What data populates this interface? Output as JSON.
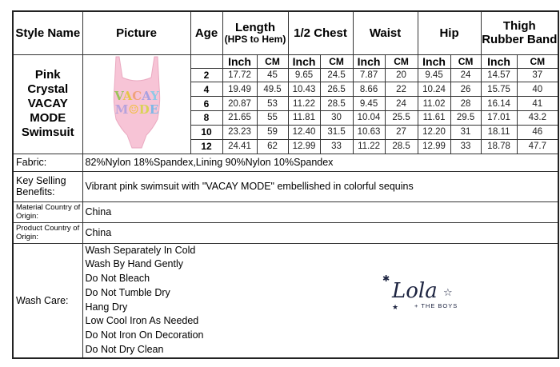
{
  "headers": {
    "style_name": "Style Name",
    "picture": "Picture",
    "age": "Age",
    "length": "Length",
    "length_sub": "(HPS to Hem)",
    "chest": "1/2 Chest",
    "waist": "Waist",
    "hip": "Hip",
    "thigh": "Thigh Rubber Band",
    "inch": "Inch",
    "cm": "CM"
  },
  "product": {
    "style_name": "Pink Crystal VACAY MODE Swimsuit",
    "picture_lettering": [
      "VACAY",
      "MODE"
    ],
    "swimsuit_color": "#f7c4d6"
  },
  "rows": [
    {
      "age": "2",
      "length_in": "17.72",
      "length_cm": "45",
      "chest_in": "9.65",
      "chest_cm": "24.5",
      "waist_in": "7.87",
      "waist_cm": "20",
      "hip_in": "9.45",
      "hip_cm": "24",
      "thigh_in": "14.57",
      "thigh_cm": "37"
    },
    {
      "age": "4",
      "length_in": "19.49",
      "length_cm": "49.5",
      "chest_in": "10.43",
      "chest_cm": "26.5",
      "waist_in": "8.66",
      "waist_cm": "22",
      "hip_in": "10.24",
      "hip_cm": "26",
      "thigh_in": "15.75",
      "thigh_cm": "40"
    },
    {
      "age": "6",
      "length_in": "20.87",
      "length_cm": "53",
      "chest_in": "11.22",
      "chest_cm": "28.5",
      "waist_in": "9.45",
      "waist_cm": "24",
      "hip_in": "11.02",
      "hip_cm": "28",
      "thigh_in": "16.14",
      "thigh_cm": "41"
    },
    {
      "age": "8",
      "length_in": "21.65",
      "length_cm": "55",
      "chest_in": "11.81",
      "chest_cm": "30",
      "waist_in": "10.04",
      "waist_cm": "25.5",
      "hip_in": "11.61",
      "hip_cm": "29.5",
      "thigh_in": "17.01",
      "thigh_cm": "43.2"
    },
    {
      "age": "10",
      "length_in": "23.23",
      "length_cm": "59",
      "chest_in": "12.40",
      "chest_cm": "31.5",
      "waist_in": "10.63",
      "waist_cm": "27",
      "hip_in": "12.20",
      "hip_cm": "31",
      "thigh_in": "18.11",
      "thigh_cm": "46"
    },
    {
      "age": "12",
      "length_in": "24.41",
      "length_cm": "62",
      "chest_in": "12.99",
      "chest_cm": "33",
      "waist_in": "11.22",
      "waist_cm": "28.5",
      "hip_in": "12.99",
      "hip_cm": "33",
      "thigh_in": "18.78",
      "thigh_cm": "47.7"
    }
  ],
  "details": {
    "fabric_label": "Fabric:",
    "fabric": "82%Nylon 18%Spandex,Lining 90%Nylon 10%Spandex",
    "key_label": "Key Selling Benefits:",
    "key": "Vibrant pink swimsuit with \"VACAY MODE\" embellished in colorful sequins",
    "material_label": "Material Country of Origin:",
    "material": "China",
    "product_label": "Product Country of Origin:",
    "product": "China",
    "wash_label": "Wash Care:",
    "wash": [
      "Wash Separately In Cold",
      "Wash By Hand Gently",
      "Do Not Bleach",
      "Do Not Tumble Dry",
      " Hang Dry",
      "Low Cool Iron As Needed",
      "Do Not Iron On Decoration",
      "Do Not Dry Clean"
    ]
  },
  "logo": {
    "name": "Lola",
    "tagline": "+ THE BOYS",
    "color": "#1c2340"
  }
}
